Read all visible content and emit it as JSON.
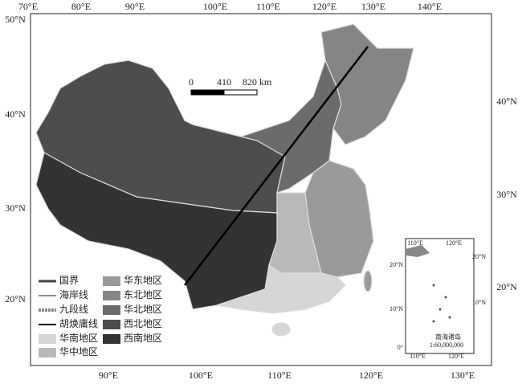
{
  "map": {
    "ticks": {
      "top": [
        "70°E",
        "80°E",
        "90°E",
        "100°E",
        "110°E",
        "120°E",
        "130°E",
        "140°E"
      ],
      "bottom": [
        "90°E",
        "100°E",
        "110°E",
        "120°E",
        "130°E"
      ],
      "left": [
        "50°N",
        "40°N",
        "30°N",
        "20°N"
      ],
      "right": [
        "40°N",
        "30°N",
        "20°N"
      ]
    },
    "scale": [
      "0",
      "410",
      "820 km"
    ],
    "legend": [
      "国界",
      "海岸线",
      "九段线",
      "胡焕庸线",
      "华南地区",
      "华中地区",
      "华东地区",
      "东北地区",
      "华北地区",
      "西北地区",
      "西南地区"
    ],
    "inset": {
      "top": [
        "110°E",
        "120°E"
      ],
      "bottom": [
        "110°E",
        "120°E"
      ],
      "left": [
        "20°N",
        "10°N",
        "0°"
      ],
      "right": [
        "20°N",
        "10°N"
      ],
      "title": "南海诸岛",
      "scale": "1:60,000,000"
    }
  }
}
